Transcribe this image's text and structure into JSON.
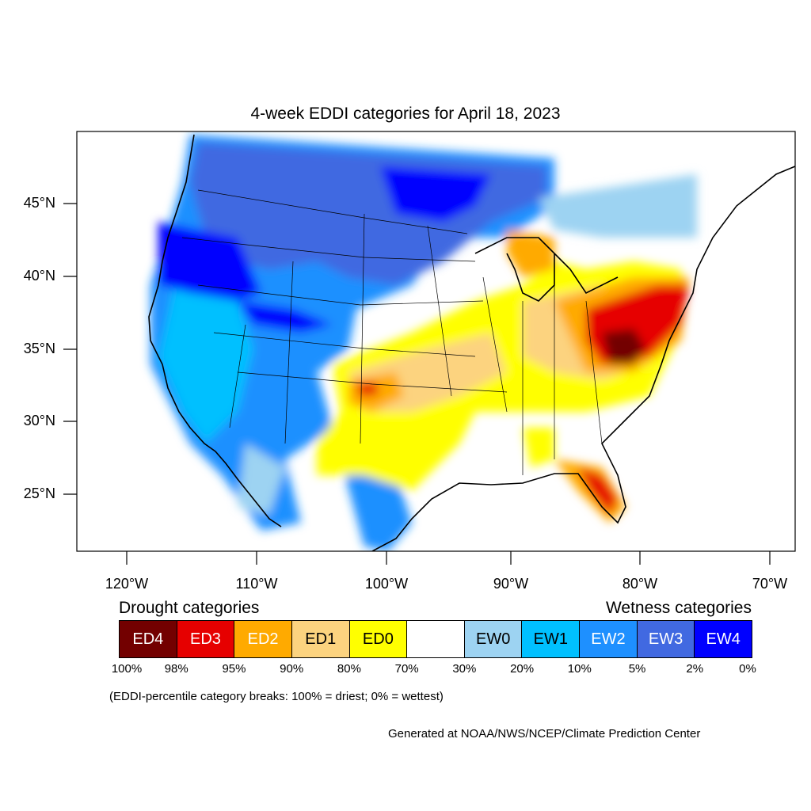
{
  "map": {
    "title": "4-week EDDI categories for April 18, 2023",
    "lat_labels": [
      "45°N",
      "40°N",
      "35°N",
      "30°N",
      "25°N"
    ],
    "lon_labels": [
      "120°W",
      "110°W",
      "100°W",
      "90°W",
      "80°W",
      "70°W"
    ]
  },
  "legend": {
    "drought_title": "Drought categories",
    "wetness_title": "Wetness categories",
    "categories": [
      {
        "label": "ED4",
        "color": "#730000",
        "text_color": "#ffffff"
      },
      {
        "label": "ED3",
        "color": "#e60000",
        "text_color": "#ffffff"
      },
      {
        "label": "ED2",
        "color": "#ffaa00",
        "text_color": "#ffffff"
      },
      {
        "label": "ED1",
        "color": "#fcd37f",
        "text_color": "#000000"
      },
      {
        "label": "ED0",
        "color": "#ffff00",
        "text_color": "#000000"
      },
      {
        "label": "",
        "color": "#ffffff",
        "text_color": "#000000"
      },
      {
        "label": "EW0",
        "color": "#9dd3f2",
        "text_color": "#000000"
      },
      {
        "label": "EW1",
        "color": "#00c0ff",
        "text_color": "#000000"
      },
      {
        "label": "EW2",
        "color": "#1e90ff",
        "text_color": "#ffffff"
      },
      {
        "label": "EW3",
        "color": "#4169e1",
        "text_color": "#ffffff"
      },
      {
        "label": "EW4",
        "color": "#0000ff",
        "text_color": "#ffffff"
      }
    ],
    "percentiles": [
      "100%",
      "98%",
      "95%",
      "90%",
      "80%",
      "70%",
      "30%",
      "20%",
      "10%",
      "5%",
      "2%",
      "0%"
    ],
    "note": "(EDDI-percentile category breaks: 100% = driest; 0% = wettest)"
  },
  "credit": "Generated at NOAA/NWS/NCEP/Climate Prediction Center"
}
